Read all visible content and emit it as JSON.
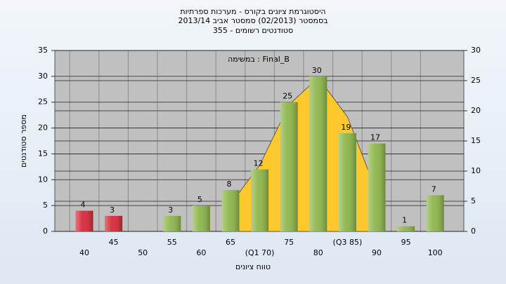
{
  "chart_data": {
    "type": "bar",
    "title": [
      "היסטוגרמת ציונים בקורס - מערכות ספרתיות",
      "בסמסטר  (02/2013)  סמסטר אביב 2013/14",
      "סטודנטים רשומים - 355"
    ],
    "annotation": "במשימה : Final_B",
    "xlabel": "טווח ציונים",
    "ylabel": "מספר סטודנטים",
    "categories": [
      "40",
      "45",
      "50",
      "55",
      "60",
      "65",
      "(Q1 70)",
      "75",
      "80",
      "(Q3 85)",
      "90",
      "95",
      "100"
    ],
    "series": [
      {
        "values": [
          4,
          3,
          null,
          3,
          5,
          8,
          12,
          25,
          30,
          19,
          17,
          1,
          7
        ],
        "colors": [
          "#d8283a",
          "#d8283a",
          "#8db64a",
          "#8db64a",
          "#8db64a",
          "#8db64a",
          "#8db64a",
          "#8db64a",
          "#8db64a",
          "#8db64a",
          "#8db64a",
          "#8db64a",
          "#8db64a"
        ]
      },
      {
        "axis": "y2",
        "type": "area",
        "color": "#ffc82c",
        "values": [
          null,
          null,
          null,
          null,
          null,
          4.5,
          11,
          21,
          25.5,
          19,
          6.5,
          null,
          null
        ]
      }
    ],
    "ylim": [
      0,
      35
    ],
    "yticks": [
      0,
      5,
      10,
      15,
      20,
      25,
      30,
      35
    ],
    "y2lim": [
      0,
      30
    ],
    "y2ticks": [
      0,
      5,
      10,
      15,
      20,
      25,
      30
    ],
    "grid": true
  }
}
